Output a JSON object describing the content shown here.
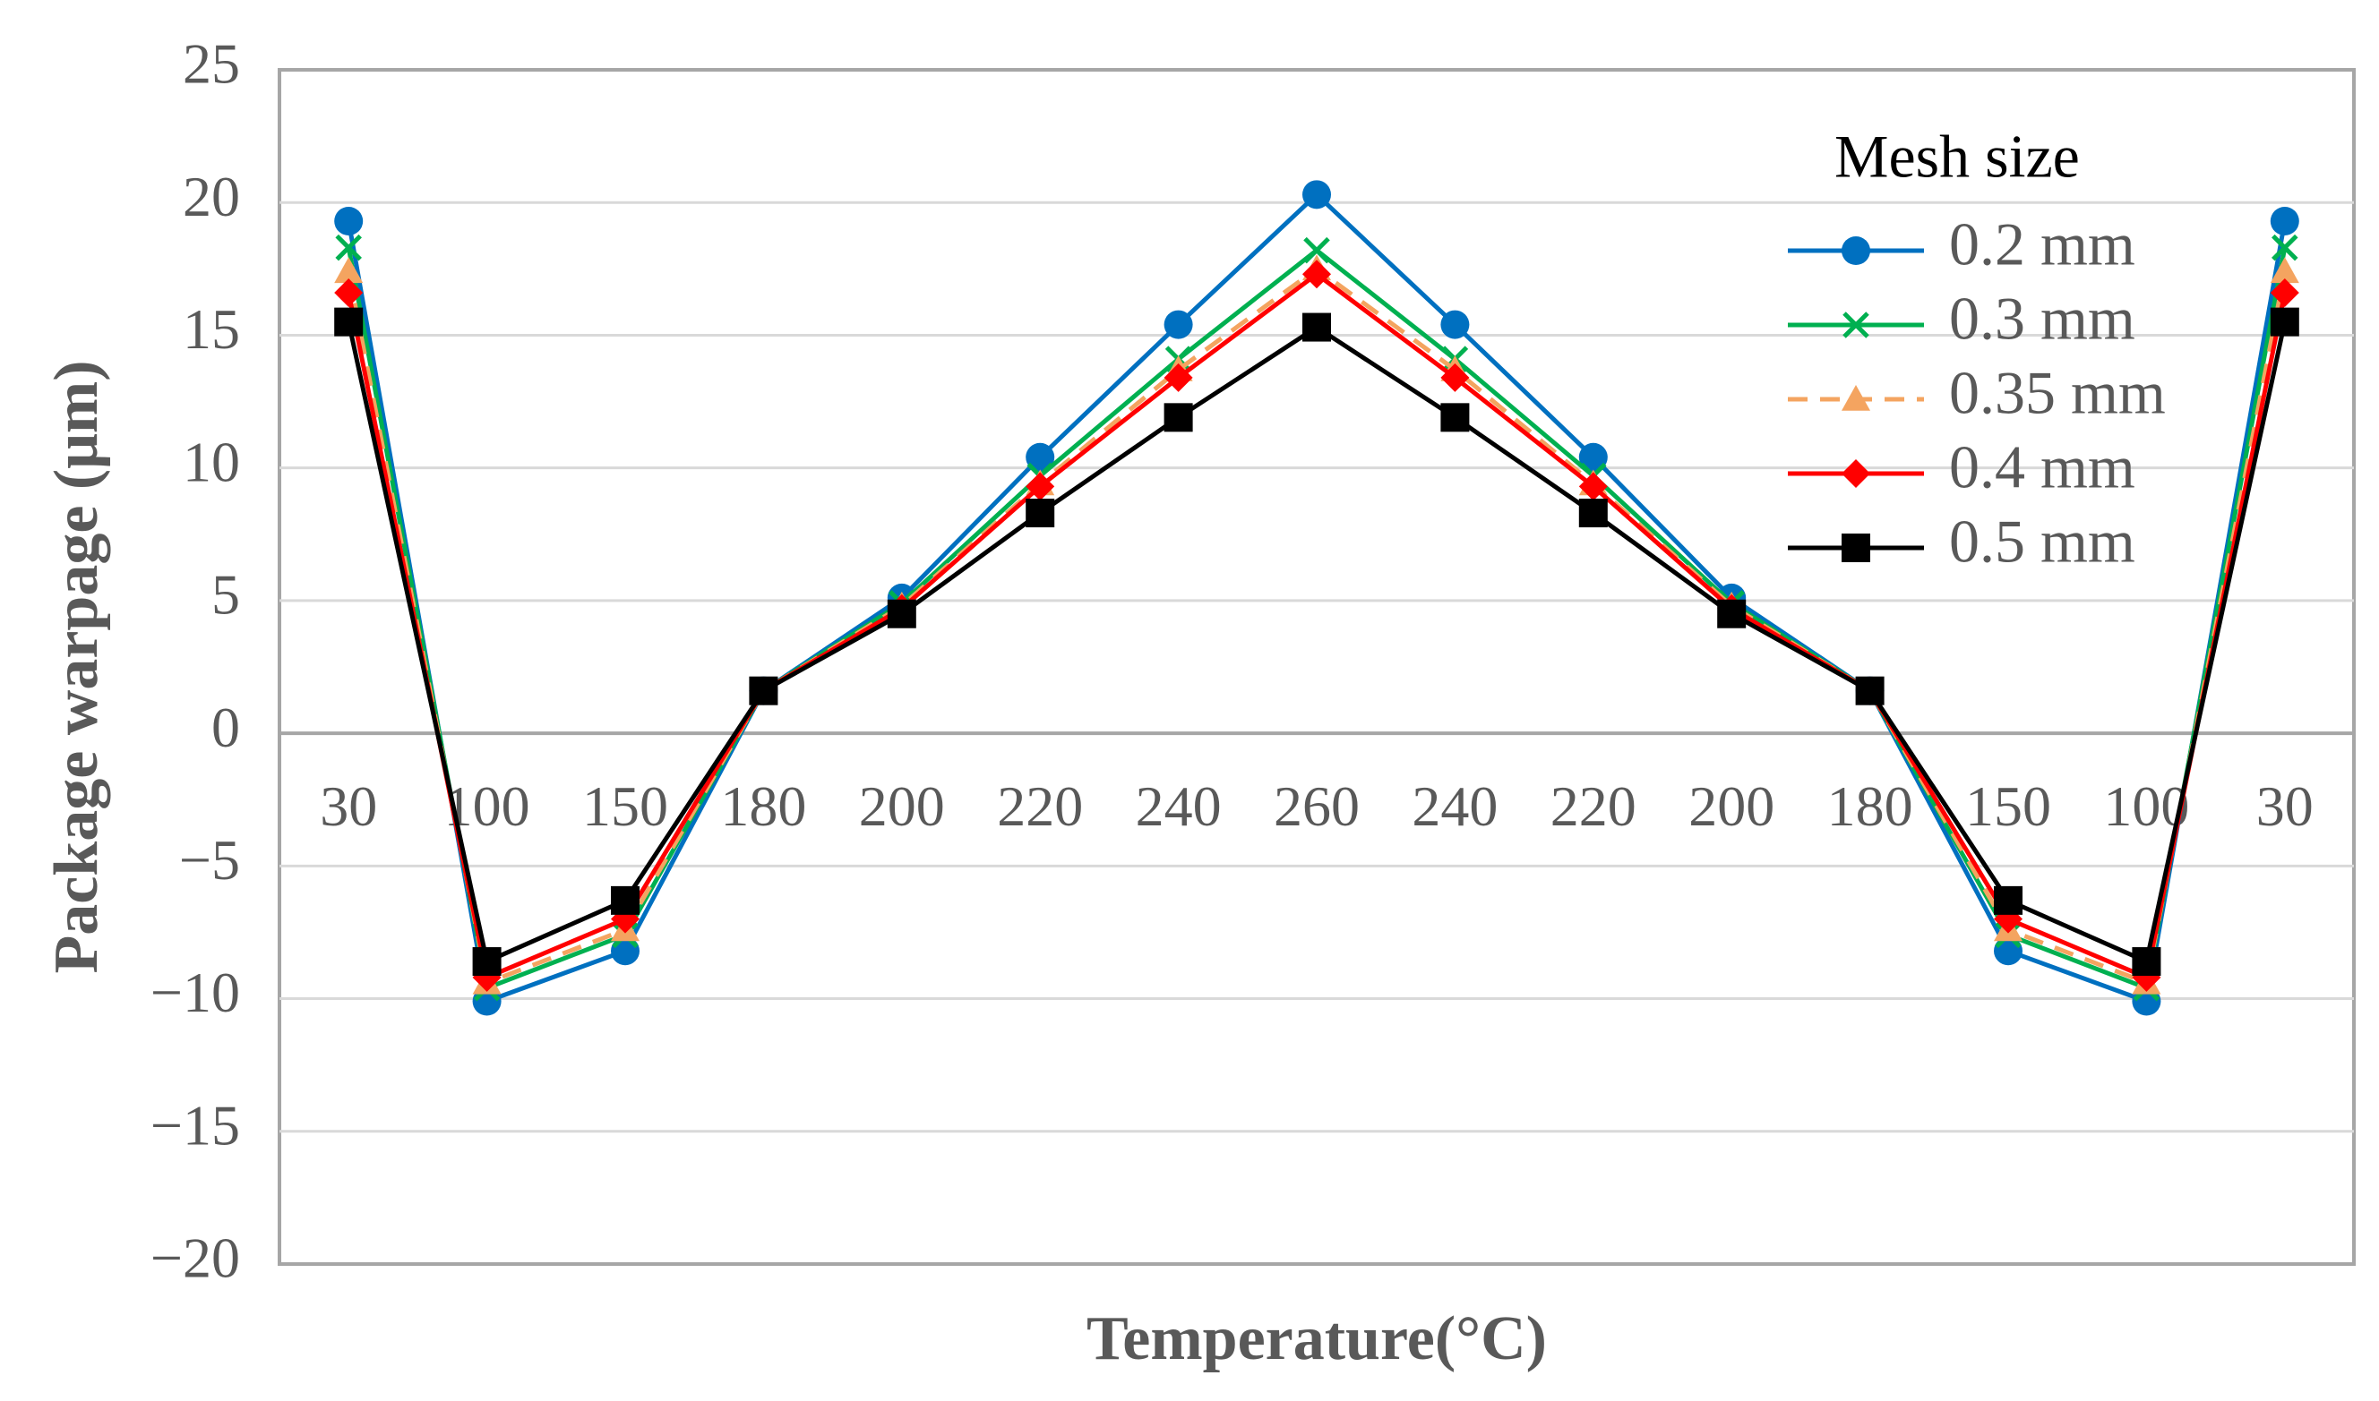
{
  "chart_data": {
    "type": "line",
    "title": "",
    "xlabel": "Temperature(°C)",
    "ylabel": "Package warpage (μm)",
    "categories": [
      "30",
      "100",
      "150",
      "180",
      "200",
      "220",
      "240",
      "260",
      "240",
      "220",
      "200",
      "180",
      "150",
      "100",
      "30"
    ],
    "ylim": [
      -20,
      25
    ],
    "yticks": [
      25,
      20,
      15,
      10,
      5,
      0,
      -5,
      -10,
      -15,
      -20
    ],
    "ytick_labels": [
      "25",
      "20",
      "15",
      "10",
      "5",
      "0",
      "−5",
      "−10",
      "−15",
      "−20"
    ],
    "grid": true,
    "legend": {
      "title": "Mesh size",
      "placement": "top-right"
    },
    "series": [
      {
        "name": "0.2 mm",
        "color": "#0070C0",
        "marker": "circle",
        "dash": "solid",
        "values": [
          19.3,
          -10.1,
          -8.2,
          1.6,
          5.1,
          10.4,
          15.4,
          20.3,
          15.4,
          10.4,
          5.1,
          1.6,
          -8.2,
          -10.1,
          19.3
        ]
      },
      {
        "name": "0.3 mm",
        "color": "#00B050",
        "marker": "x",
        "dash": "solid",
        "values": [
          18.3,
          -9.6,
          -7.6,
          1.6,
          4.9,
          9.7,
          14.1,
          18.2,
          14.1,
          9.7,
          4.9,
          1.6,
          -7.6,
          -9.6,
          18.3
        ]
      },
      {
        "name": "0.35 mm",
        "color": "#F4A460",
        "marker": "triangle",
        "dash": "dashed",
        "values": [
          17.4,
          -9.4,
          -7.4,
          1.6,
          4.8,
          9.4,
          13.7,
          17.5,
          13.7,
          9.4,
          4.8,
          1.6,
          -7.4,
          -9.4,
          17.4
        ]
      },
      {
        "name": "0.4 mm",
        "color": "#FF0000",
        "marker": "diamond",
        "dash": "solid",
        "values": [
          16.6,
          -9.2,
          -7.0,
          1.6,
          4.7,
          9.3,
          13.4,
          17.3,
          13.4,
          9.3,
          4.7,
          1.6,
          -7.0,
          -9.2,
          16.6
        ]
      },
      {
        "name": "0.5 mm",
        "color": "#000000",
        "marker": "square",
        "dash": "solid",
        "values": [
          15.5,
          -8.6,
          -6.3,
          1.6,
          4.5,
          8.3,
          11.9,
          15.3,
          11.9,
          8.3,
          4.5,
          1.6,
          -6.3,
          -8.6,
          15.5
        ]
      }
    ]
  }
}
